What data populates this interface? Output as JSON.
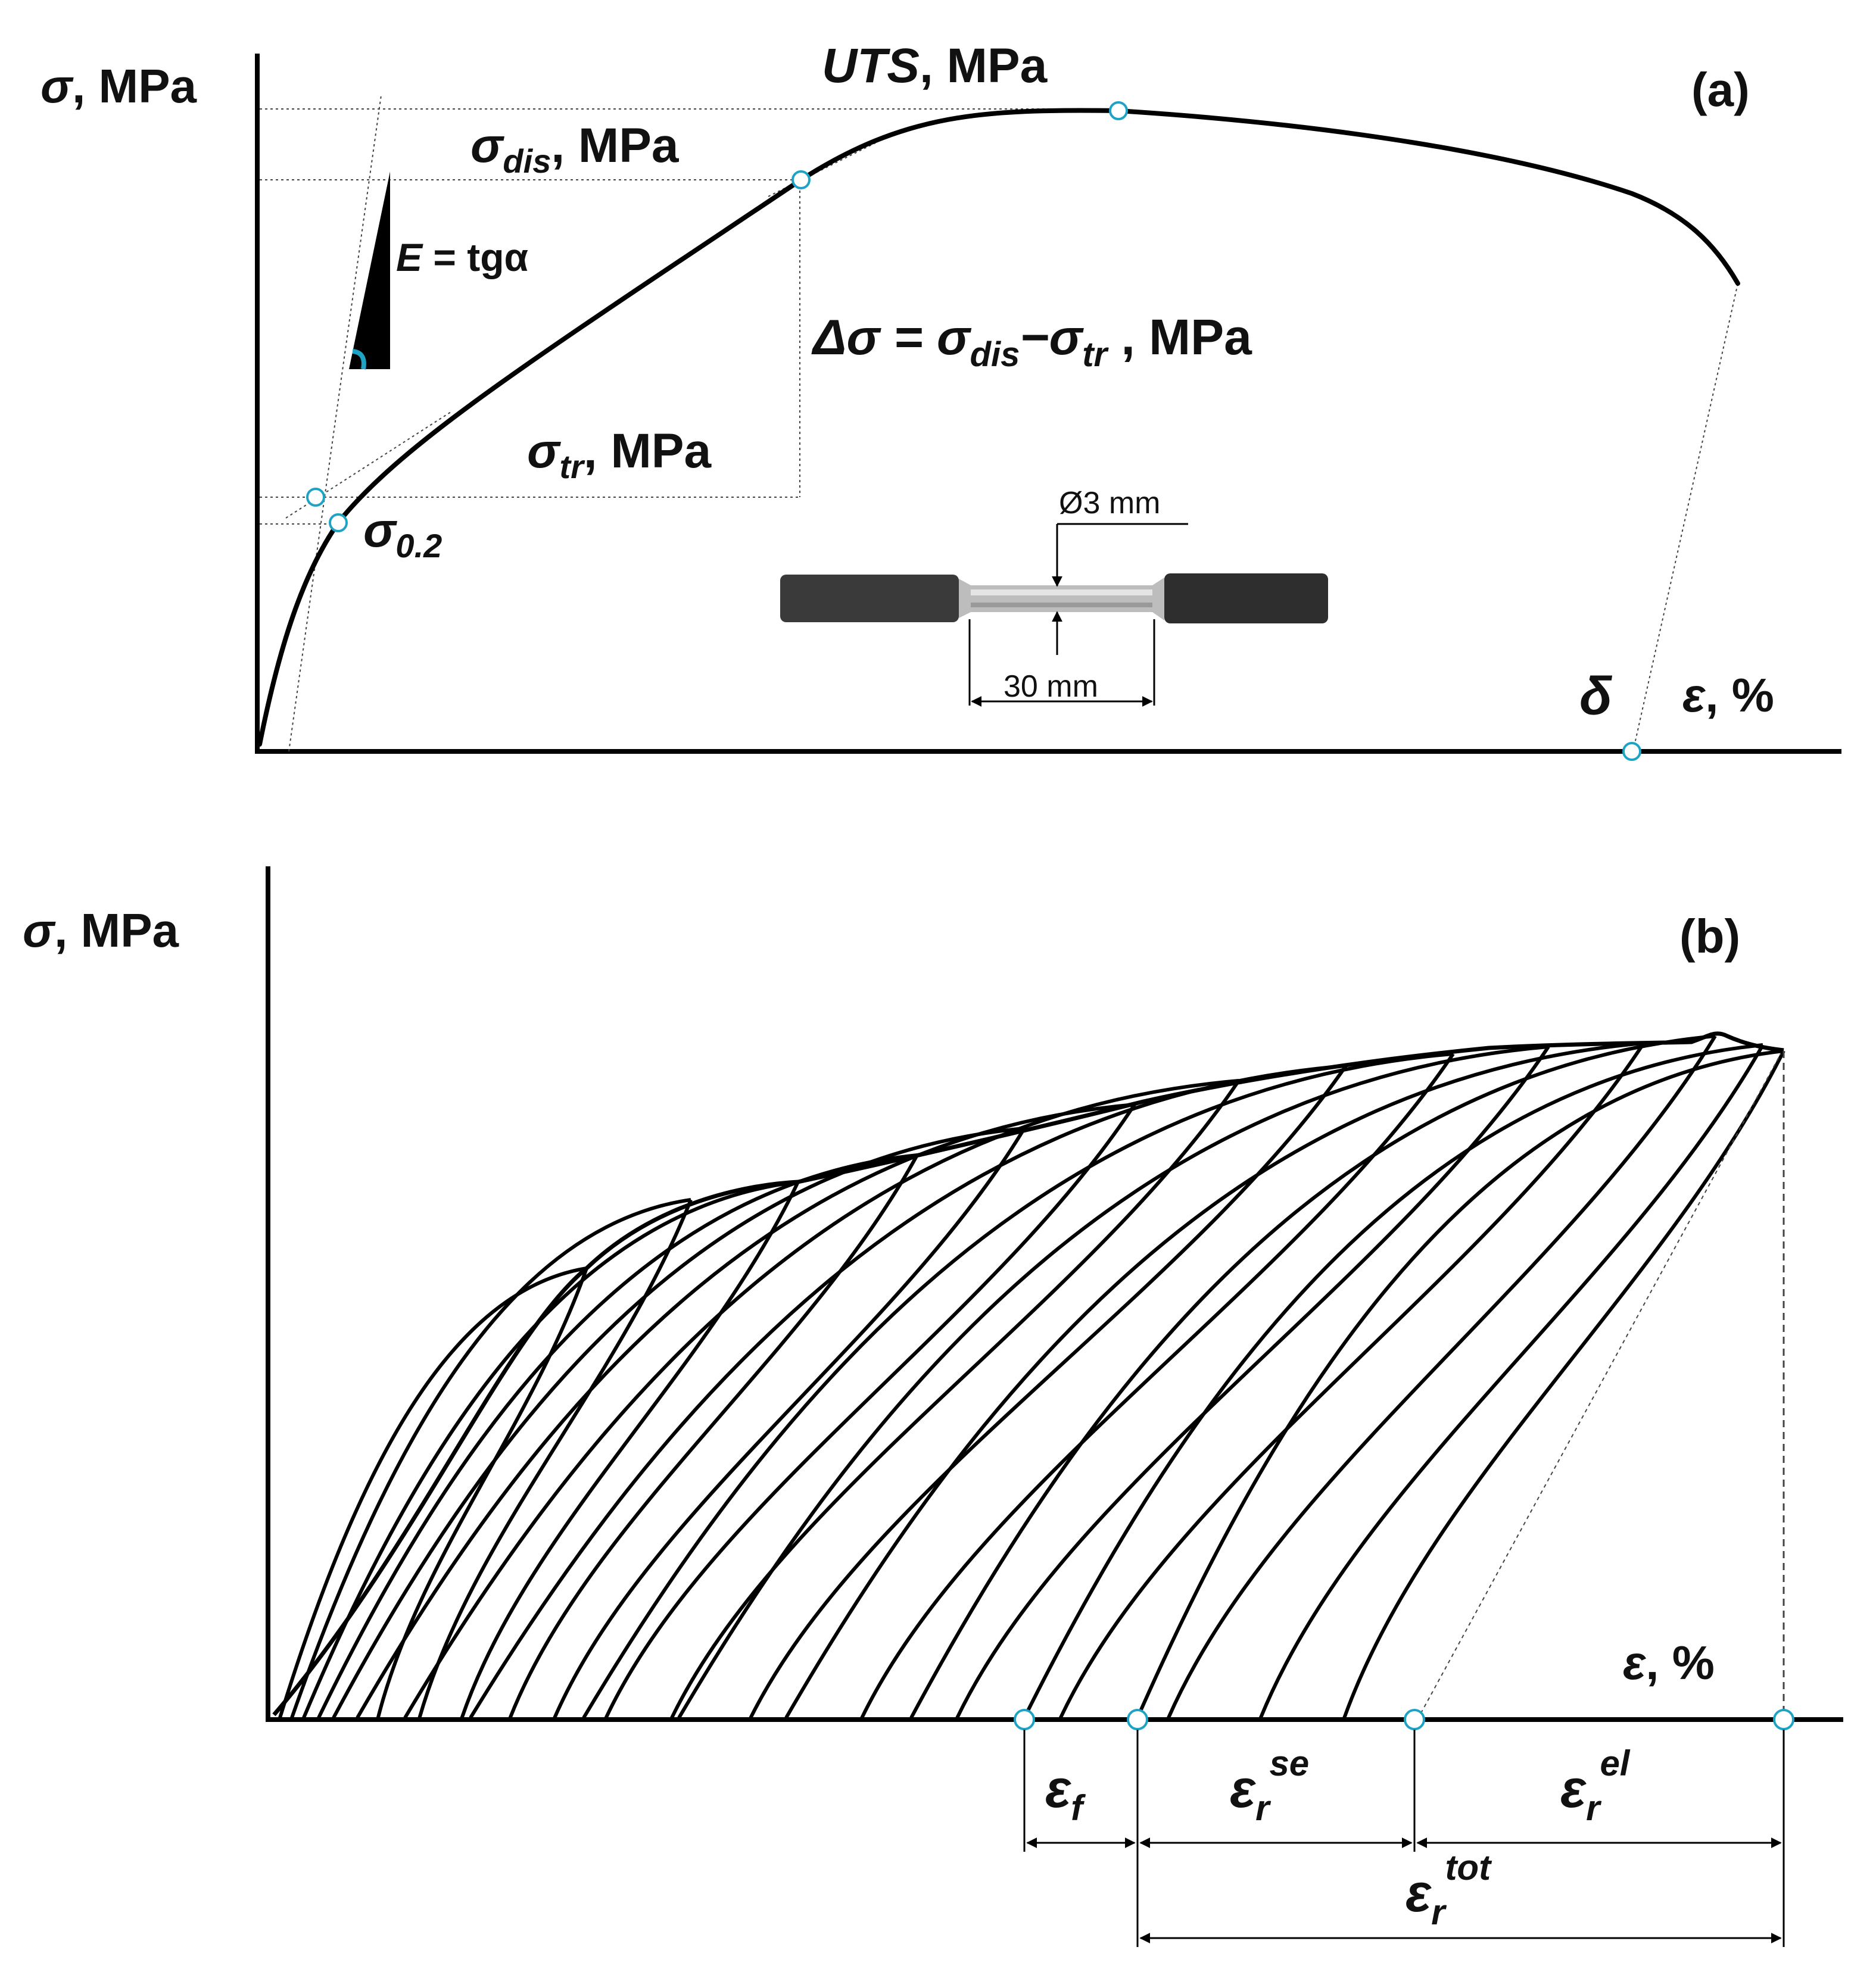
{
  "panel_a": {
    "tag": "(a)",
    "y_axis": {
      "symbol": "σ",
      "unit": ", MPa"
    },
    "x_axis": {
      "symbol": "ε",
      "unit": ", %"
    },
    "uts": {
      "name": "UTS",
      "unit": ", MPa"
    },
    "sigma_dis": {
      "base": "σ",
      "sub": "dis",
      "unit": ", MPa"
    },
    "sigma_tr": {
      "base": "σ",
      "sub": "tr",
      "unit": ", MPa"
    },
    "sigma_02": {
      "base": "σ",
      "sub": "0.2"
    },
    "modulus": {
      "lhs": "E",
      "rhs": " = tgα"
    },
    "delta_sigma": {
      "lhs": "Δσ = σ",
      "sub1": "dis",
      "mid": "−σ",
      "sub2": "tr",
      "unit": " , MPa"
    },
    "delta": "δ",
    "specimen": {
      "diameter": "Ø3 mm",
      "length": "30 mm"
    }
  },
  "panel_b": {
    "tag": "(b)",
    "y_axis": {
      "symbol": "σ",
      "unit": ", MPa"
    },
    "x_axis": {
      "symbol": "ε",
      "unit": ", %"
    },
    "eps_f": {
      "base": "ε",
      "sub": "f"
    },
    "eps_r_se": {
      "base": "ε",
      "sub": "r",
      "sup": "se"
    },
    "eps_r_el": {
      "base": "ε",
      "sub": "r",
      "sup": "el"
    },
    "eps_r_tot": {
      "base": "ε",
      "sub": "r",
      "sup": "tot"
    }
  },
  "colors": {
    "line": "#000000",
    "marker": "#1ea3c4",
    "rod_dark": "#3a3a3a",
    "rod_light": "#bfbfbf"
  }
}
